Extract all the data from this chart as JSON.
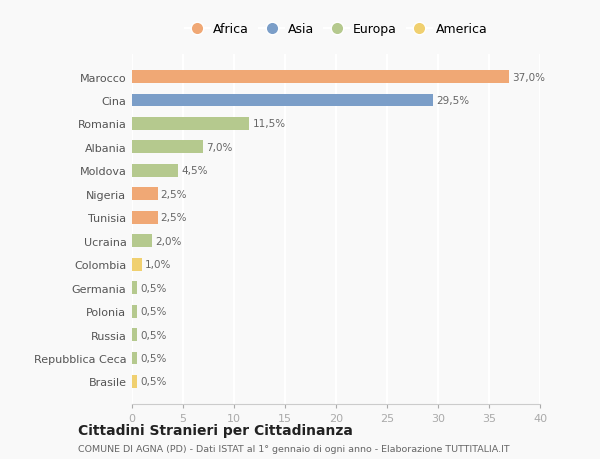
{
  "countries": [
    "Marocco",
    "Cina",
    "Romania",
    "Albania",
    "Moldova",
    "Nigeria",
    "Tunisia",
    "Ucraina",
    "Colombia",
    "Germania",
    "Polonia",
    "Russia",
    "Repubblica Ceca",
    "Brasile"
  ],
  "values": [
    37.0,
    29.5,
    11.5,
    7.0,
    4.5,
    2.5,
    2.5,
    2.0,
    1.0,
    0.5,
    0.5,
    0.5,
    0.5,
    0.5
  ],
  "labels": [
    "37,0%",
    "29,5%",
    "11,5%",
    "7,0%",
    "4,5%",
    "2,5%",
    "2,5%",
    "2,0%",
    "1,0%",
    "0,5%",
    "0,5%",
    "0,5%",
    "0,5%",
    "0,5%"
  ],
  "continents": [
    "Africa",
    "Asia",
    "Europa",
    "Europa",
    "Europa",
    "Africa",
    "Africa",
    "Europa",
    "America",
    "Europa",
    "Europa",
    "Europa",
    "Europa",
    "America"
  ],
  "colors": {
    "Africa": "#F0A875",
    "Asia": "#7B9EC8",
    "Europa": "#B5C98E",
    "America": "#F0D070"
  },
  "legend_order": [
    "Africa",
    "Asia",
    "Europa",
    "America"
  ],
  "xlim": [
    0,
    40
  ],
  "xticks": [
    0,
    5,
    10,
    15,
    20,
    25,
    30,
    35,
    40
  ],
  "title": "Cittadini Stranieri per Cittadinanza",
  "subtitle": "COMUNE DI AGNA (PD) - Dati ISTAT al 1° gennaio di ogni anno - Elaborazione TUTTITALIA.IT",
  "background_color": "#f9f9f9",
  "grid_color": "#ffffff",
  "bar_height": 0.55
}
